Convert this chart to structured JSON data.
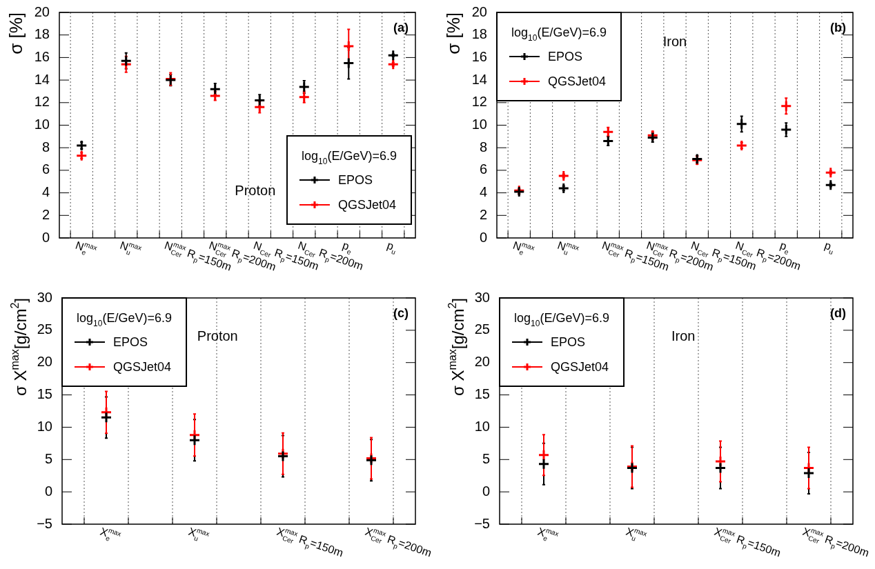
{
  "chart_data": [
    {
      "type": "scatter",
      "ylabel": "σ [%]",
      "legend_title": "log$_{10}$(E/GeV)=6.9",
      "legend": "bottom right",
      "grid": "x",
      "marker": "cross",
      "annotations": [
        "(a)",
        "Proton"
      ],
      "categories": [
        "N$_{e}$$^{max}$",
        "N$_{u}$$^{max}$",
        "N$_{Cer}$$^{max}$ R$_{p}$=150m",
        "N$_{Cer}$$^{max}$ R$_{p}$=200m",
        "N$_{Cer}$ R$_{p}$=150m",
        "N$_{Cer}$ R$_{p}$=200m",
        "p$_{e}$",
        "p$_{u}$"
      ],
      "ylim": [
        0,
        20
      ],
      "yticks": [
        0,
        2,
        4,
        6,
        8,
        10,
        12,
        14,
        16,
        18,
        20
      ],
      "series": [
        {
          "name": "EPOS",
          "color": "#000000",
          "values": [
            8.2,
            15.7,
            14.0,
            13.2,
            12.2,
            13.4,
            15.5,
            16.2
          ],
          "errors": [
            0.3,
            0.7,
            0.5,
            0.5,
            0.5,
            0.55,
            1.4,
            0.1
          ]
        },
        {
          "name": "QGSJet04",
          "color": "#ff0000",
          "values": [
            7.3,
            15.4,
            14.1,
            12.6,
            11.6,
            12.5,
            17.0,
            15.4
          ],
          "errors": [
            0.25,
            0.7,
            0.55,
            0.4,
            0.5,
            0.5,
            1.5,
            0.15
          ]
        }
      ]
    },
    {
      "type": "scatter",
      "ylabel": "σ [%]",
      "legend_title": "log$_{10}$(E/GeV)=6.9",
      "legend": "top left",
      "grid": "x",
      "marker": "cross",
      "annotations": [
        "(b)",
        "Iron"
      ],
      "categories": [
        "N$_{e}$$^{max}$",
        "N$_{u}$$^{max}$",
        "N$_{Cer}$$^{max}$ R$_{p}$=150m",
        "N$_{Cer}$$^{max}$ R$_{p}$=200m",
        "N$_{Cer}$ R$_{p}$=150m",
        "N$_{Cer}$ R$_{p}$=200m",
        "p$_{e}$",
        "p$_{u}$"
      ],
      "ylim": [
        0,
        20
      ],
      "yticks": [
        0,
        2,
        4,
        6,
        8,
        10,
        12,
        14,
        16,
        18,
        20
      ],
      "series": [
        {
          "name": "EPOS",
          "color": "#000000",
          "values": [
            4.1,
            4.4,
            8.6,
            8.9,
            7.0,
            10.1,
            9.6,
            4.7
          ],
          "errors": [
            0.2,
            0.2,
            0.4,
            0.4,
            0.3,
            0.7,
            0.6,
            0.15
          ]
        },
        {
          "name": "QGSJet04",
          "color": "#ff0000",
          "values": [
            4.2,
            5.5,
            9.4,
            9.1,
            6.9,
            8.2,
            11.7,
            5.8
          ],
          "errors": [
            0.15,
            0.15,
            0.4,
            0.35,
            0.35,
            0.25,
            0.7,
            0.15
          ]
        }
      ]
    },
    {
      "type": "scatter",
      "ylabel": "σ X$^{max}$[g/cm$^{2}$]",
      "legend_title": "log$_{10}$(E/GeV)=6.9",
      "legend": "top left",
      "grid": "x",
      "marker": "cross",
      "annotations": [
        "(c)",
        "Proton"
      ],
      "categories": [
        "X$_{e}$$^{max}$",
        "X$_{u}$$^{max}$",
        "X$_{Cer}$$^{max}$ R$_{p}$=150m",
        "X$_{Cer}$$^{max}$ R$_{p}$=200m"
      ],
      "ylim": [
        -5,
        30
      ],
      "yticks": [
        {
          "value": -5,
          "label": "−5"
        },
        0,
        5,
        10,
        15,
        20,
        25,
        30
      ],
      "series": [
        {
          "name": "EPOS",
          "color": "#000000",
          "values": [
            11.5,
            8.0,
            5.5,
            4.9
          ],
          "errors": [
            3.2,
            3.2,
            3.2,
            3.2
          ]
        },
        {
          "name": "QGSJet04",
          "color": "#ff0000",
          "values": [
            12.3,
            8.8,
            5.9,
            5.2
          ],
          "errors": [
            3.25,
            3.25,
            3.2,
            3.2
          ]
        }
      ]
    },
    {
      "type": "scatter",
      "ylabel": "σ X$^{max}$[g/cm$^{2}$]",
      "legend_title": "log$_{10}$(E/GeV)=6.9",
      "legend": "top left",
      "grid": "x",
      "marker": "cross",
      "annotations": [
        "(d)",
        "Iron"
      ],
      "categories": [
        "X$_{e}$$^{max}$",
        "X$_{u}$$^{max}$",
        "X$_{Cer}$$^{max}$ R$_{p}$=150m",
        "X$_{Cer}$$^{max}$ R$_{p}$=200m"
      ],
      "ylim": [
        -5,
        30
      ],
      "yticks": [
        {
          "value": -5,
          "label": "−5"
        },
        0,
        5,
        10,
        15,
        20,
        25,
        30
      ],
      "series": [
        {
          "name": "EPOS",
          "color": "#000000",
          "values": [
            4.3,
            3.7,
            3.7,
            2.9
          ],
          "errors": [
            3.2,
            3.2,
            3.2,
            3.2
          ]
        },
        {
          "name": "QGSJet04",
          "color": "#ff0000",
          "values": [
            5.7,
            3.9,
            4.7,
            3.7
          ],
          "errors": [
            3.15,
            3.2,
            3.15,
            3.2
          ]
        }
      ]
    }
  ]
}
